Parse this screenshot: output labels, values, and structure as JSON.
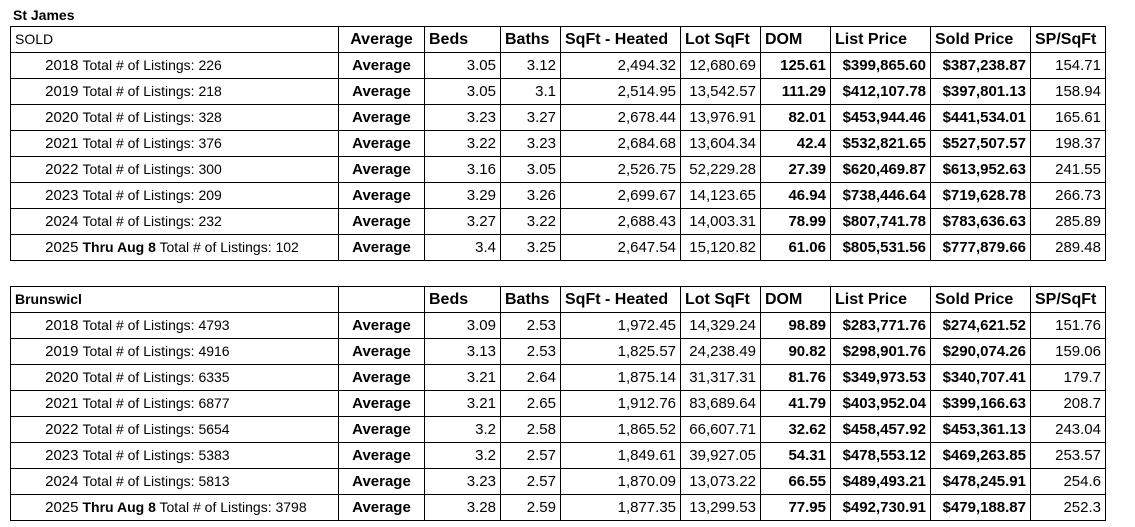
{
  "sections": [
    {
      "title": "St James",
      "header": {
        "label": "SOLD",
        "avg": "Average",
        "cols": [
          "Beds",
          "Baths",
          "SqFt - Heated",
          "Lot SqFt",
          "DOM",
          "List Price",
          "Sold Price",
          "SP/SqFt"
        ]
      },
      "rows": [
        {
          "year": "2018",
          "note": "",
          "listings": "Total # of Listings: 226",
          "avg": "Average",
          "beds": "3.05",
          "baths": "3.12",
          "sqft": "2,494.32",
          "lot": "12,680.69",
          "dom": "125.61",
          "list": "$399,865.60",
          "sold": "$387,238.87",
          "spsqft": "154.71"
        },
        {
          "year": "2019",
          "note": "",
          "listings": "Total # of Listings: 218",
          "avg": "Average",
          "beds": "3.05",
          "baths": "3.1",
          "sqft": "2,514.95",
          "lot": "13,542.57",
          "dom": "111.29",
          "list": "$412,107.78",
          "sold": "$397,801.13",
          "spsqft": "158.94"
        },
        {
          "year": "2020",
          "note": "",
          "listings": "Total # of Listings: 328",
          "avg": "Average",
          "beds": "3.23",
          "baths": "3.27",
          "sqft": "2,678.44",
          "lot": "13,976.91",
          "dom": "82.01",
          "list": "$453,944.46",
          "sold": "$441,534.01",
          "spsqft": "165.61"
        },
        {
          "year": "2021",
          "note": "",
          "listings": "Total # of Listings: 376",
          "avg": "Average",
          "beds": "3.22",
          "baths": "3.23",
          "sqft": "2,684.68",
          "lot": "13,604.34",
          "dom": "42.4",
          "list": "$532,821.65",
          "sold": "$527,507.57",
          "spsqft": "198.37"
        },
        {
          "year": "2022",
          "note": "",
          "listings": "Total # of Listings: 300",
          "avg": "Average",
          "beds": "3.16",
          "baths": "3.05",
          "sqft": "2,526.75",
          "lot": "52,229.28",
          "dom": "27.39",
          "list": "$620,469.87",
          "sold": "$613,952.63",
          "spsqft": "241.55"
        },
        {
          "year": "2023",
          "note": "",
          "listings": "Total # of Listings: 209",
          "avg": "Average",
          "beds": "3.29",
          "baths": "3.26",
          "sqft": "2,699.67",
          "lot": "14,123.65",
          "dom": "46.94",
          "list": "$738,446.64",
          "sold": "$719,628.78",
          "spsqft": "266.73"
        },
        {
          "year": "2024",
          "note": "",
          "listings": "Total # of Listings: 232",
          "avg": "Average",
          "beds": "3.27",
          "baths": "3.22",
          "sqft": "2,688.43",
          "lot": "14,003.31",
          "dom": "78.99",
          "list": "$807,741.78",
          "sold": "$783,636.63",
          "spsqft": "285.89"
        },
        {
          "year": "2025",
          "note": "Thru Aug 8",
          "listings": "Total # of Listings: 102",
          "avg": "Average",
          "beds": "3.4",
          "baths": "3.25",
          "sqft": "2,647.54",
          "lot": "15,120.82",
          "dom": "61.06",
          "list": "$805,531.56",
          "sold": "$777,879.66",
          "spsqft": "289.48"
        }
      ]
    },
    {
      "title": "",
      "header": {
        "label": "Brunswick",
        "avg": "",
        "cols": [
          "Beds",
          "Baths",
          "SqFt - Heated",
          "Lot SqFt",
          "DOM",
          "List Price",
          "Sold Price",
          "SP/SqFt"
        ]
      },
      "rows": [
        {
          "year": "2018",
          "note": "",
          "listings": "Total # of Listings: 4793",
          "avg": "Average",
          "beds": "3.09",
          "baths": "2.53",
          "sqft": "1,972.45",
          "lot": "14,329.24",
          "dom": "98.89",
          "list": "$283,771.76",
          "sold": "$274,621.52",
          "spsqft": "151.76"
        },
        {
          "year": "2019",
          "note": "",
          "listings": "Total # of Listings: 4916",
          "avg": "Average",
          "beds": "3.13",
          "baths": "2.53",
          "sqft": "1,825.57",
          "lot": "24,238.49",
          "dom": "90.82",
          "list": "$298,901.76",
          "sold": "$290,074.26",
          "spsqft": "159.06"
        },
        {
          "year": "2020",
          "note": "",
          "listings": "Total # of Listings: 6335",
          "avg": "Average",
          "beds": "3.21",
          "baths": "2.64",
          "sqft": "1,875.14",
          "lot": "31,317.31",
          "dom": "81.76",
          "list": "$349,973.53",
          "sold": "$340,707.41",
          "spsqft": "179.7"
        },
        {
          "year": "2021",
          "note": "",
          "listings": "Total # of Listings: 6877",
          "avg": "Average",
          "beds": "3.21",
          "baths": "2.65",
          "sqft": "1,912.76",
          "lot": "83,689.64",
          "dom": "41.79",
          "list": "$403,952.04",
          "sold": "$399,166.63",
          "spsqft": "208.7"
        },
        {
          "year": "2022",
          "note": "",
          "listings": "Total # of Listings: 5654",
          "avg": "Average",
          "beds": "3.2",
          "baths": "2.58",
          "sqft": "1,865.52",
          "lot": "66,607.71",
          "dom": "32.62",
          "list": "$458,457.92",
          "sold": "$453,361.13",
          "spsqft": "243.04"
        },
        {
          "year": "2023",
          "note": "",
          "listings": "Total # of Listings: 5383",
          "avg": "Average",
          "beds": "3.2",
          "baths": "2.57",
          "sqft": "1,849.61",
          "lot": "39,927.05",
          "dom": "54.31",
          "list": "$478,553.12",
          "sold": "$469,263.85",
          "spsqft": "253.57"
        },
        {
          "year": "2024",
          "note": "",
          "listings": "Total # of Listings: 5813",
          "avg": "Average",
          "beds": "3.23",
          "baths": "2.57",
          "sqft": "1,870.09",
          "lot": "13,073.22",
          "dom": "66.55",
          "list": "$489,493.21",
          "sold": "$478,245.91",
          "spsqft": "254.6"
        },
        {
          "year": "2025",
          "note": "Thru Aug 8",
          "listings": "Total # of Listings: 3798",
          "avg": "Average",
          "beds": "3.28",
          "baths": "2.59",
          "sqft": "1,877.35",
          "lot": "13,299.53",
          "dom": "77.95",
          "list": "$492,730.91",
          "sold": "$479,188.87",
          "spsqft": "252.3"
        }
      ]
    }
  ]
}
